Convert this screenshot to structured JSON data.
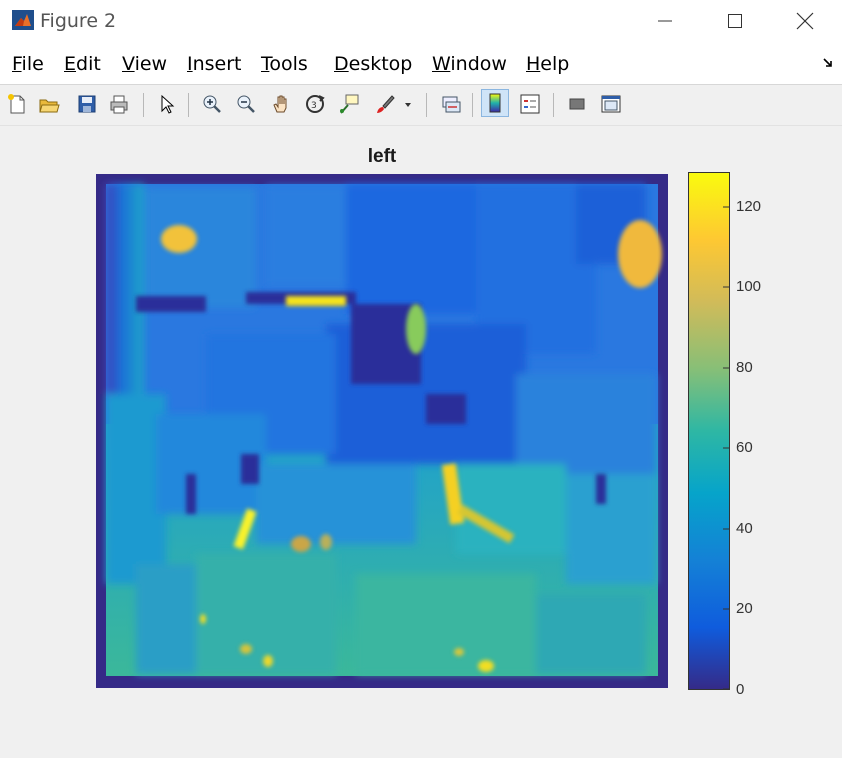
{
  "window": {
    "title": "Figure 2",
    "icon": "matlab-logo-icon"
  },
  "menu": [
    {
      "label": "File",
      "mnemonic": "F",
      "rest": "ile"
    },
    {
      "label": "Edit",
      "mnemonic": "E",
      "rest": "dit"
    },
    {
      "label": "View",
      "mnemonic": "V",
      "rest": "iew"
    },
    {
      "label": "Insert",
      "mnemonic": "I",
      "rest": "nsert"
    },
    {
      "label": "Tools",
      "mnemonic": "T",
      "rest": "ools"
    },
    {
      "label": "Desktop",
      "mnemonic": "D",
      "rest": "esktop"
    },
    {
      "label": "Window",
      "mnemonic": "W",
      "rest": "indow"
    },
    {
      "label": "Help",
      "mnemonic": "H",
      "rest": "elp"
    }
  ],
  "toolbar": [
    "new-figure-icon",
    "open-file-icon",
    "save-icon",
    "print-icon",
    "select-arrow-icon",
    "zoom-in-icon",
    "zoom-out-icon",
    "pan-icon",
    "rotate-3d-icon",
    "data-cursor-icon",
    "brush-icon",
    "link-plot-icon",
    "colorbar-icon",
    "legend-icon",
    "hide-plot-tools-icon",
    "show-plot-tools-icon"
  ],
  "axes": {
    "title": "left"
  },
  "colorbar": {
    "ticks": [
      "0",
      "20",
      "40",
      "60",
      "80",
      "100",
      "120"
    ],
    "colormap": "parula"
  }
}
